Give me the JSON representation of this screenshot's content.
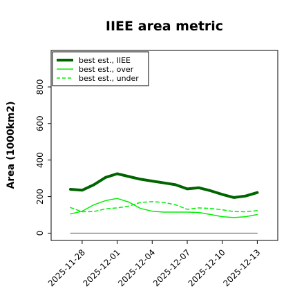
{
  "chart_data": {
    "type": "line",
    "title": "IIEE area metric",
    "xlabel": "",
    "ylabel": "Area (1000km2)",
    "x": [
      "2025-11-27",
      "2025-11-28",
      "2025-11-29",
      "2025-11-30",
      "2025-12-01",
      "2025-12-02",
      "2025-12-03",
      "2025-12-04",
      "2025-12-05",
      "2025-12-06",
      "2025-12-07",
      "2025-12-08",
      "2025-12-09",
      "2025-12-10",
      "2025-12-11",
      "2025-12-12",
      "2025-12-13"
    ],
    "x_ticks": [
      "2025-11-28",
      "2025-12-01",
      "2025-12-04",
      "2025-12-07",
      "2025-12-10",
      "2025-12-13"
    ],
    "ylim": [
      -40,
      1000
    ],
    "y_ticks": [
      0,
      200,
      400,
      600,
      800
    ],
    "grid": false,
    "legend_position": "top-left",
    "series": [
      {
        "name": "best est., IIEE",
        "color": "#006400",
        "style": "solid",
        "width": 4,
        "values": [
          240,
          235,
          265,
          305,
          325,
          310,
          295,
          285,
          275,
          265,
          242,
          248,
          232,
          212,
          195,
          203,
          222
        ]
      },
      {
        "name": "best est., over",
        "color": "#00ee00",
        "style": "solid",
        "width": 1.5,
        "values": [
          105,
          120,
          155,
          178,
          190,
          170,
          135,
          120,
          115,
          115,
          115,
          113,
          102,
          90,
          85,
          90,
          102
        ]
      },
      {
        "name": "best est., under",
        "color": "#00ee00",
        "style": "dashed",
        "width": 1.5,
        "values": [
          140,
          117,
          118,
          133,
          138,
          148,
          168,
          172,
          168,
          155,
          130,
          138,
          135,
          128,
          118,
          117,
          123
        ]
      },
      {
        "name": "",
        "color": "#555555",
        "style": "solid",
        "width": 1,
        "values": [
          0,
          0,
          0,
          0,
          0,
          0,
          0,
          0,
          0,
          0,
          0,
          0,
          0,
          0,
          0,
          0,
          0
        ]
      }
    ]
  }
}
